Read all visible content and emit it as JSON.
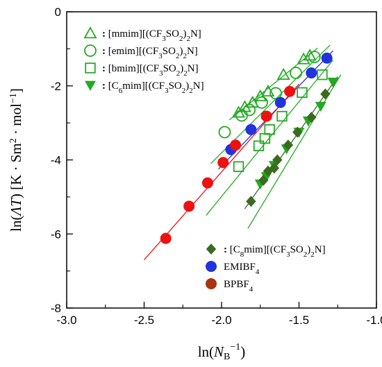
{
  "chart_data": {
    "type": "scatter",
    "title": "",
    "xlabel_parts": [
      "ln(",
      "N",
      "B",
      "−1",
      ")"
    ],
    "ylabel_parts": [
      "ln(",
      "ΛT",
      ")  [K · Sm",
      "2",
      " · mol",
      "−1",
      "]"
    ],
    "xlim": [
      -3.0,
      -1.0
    ],
    "ylim": [
      -8,
      0
    ],
    "x_ticks": [
      -3.0,
      -2.5,
      -2.0,
      -1.5,
      -1.0
    ],
    "x_tick_labels": [
      "-3.0",
      "-2.5",
      "-2.0",
      "-1.5",
      "-1.0"
    ],
    "y_ticks": [
      -8,
      -6,
      -4,
      -2,
      0
    ],
    "y_tick_labels": [
      "-8",
      "-6",
      "-4",
      "-2",
      "0"
    ],
    "grid": false,
    "series": [
      {
        "key": "mmim",
        "legend": [
          "[mmim][(CF",
          "3",
          "SO",
          "2",
          ")",
          "2",
          "N]"
        ],
        "marker": "triangle-open",
        "color": "#22aa22",
        "x": [
          -1.89,
          -1.85,
          -1.8,
          -1.75,
          -1.7,
          -1.6,
          -1.47,
          -1.43
        ],
        "y": [
          -2.72,
          -2.57,
          -2.45,
          -2.28,
          -2.15,
          -1.7,
          -1.28,
          -1.18
        ],
        "fit": [
          [
            -1.95,
            -2.92
          ],
          [
            -1.38,
            -0.98
          ]
        ]
      },
      {
        "key": "emim",
        "legend": [
          "[emim][(CF",
          "3",
          "SO",
          "2",
          ")",
          "2",
          "N]"
        ],
        "marker": "circle-open",
        "color": "#22aa22",
        "x": [
          -1.98,
          -1.87,
          -1.82,
          -1.74,
          -1.65,
          -1.52,
          -1.4
        ],
        "y": [
          -3.25,
          -2.8,
          -2.65,
          -2.45,
          -2.2,
          -1.65,
          -1.22
        ],
        "fit": [
          [
            -2.07,
            -4.1
          ],
          [
            -1.3,
            -0.9
          ]
        ]
      },
      {
        "key": "bmim",
        "legend": [
          "[bmim][(CF",
          "3",
          "SO",
          "2",
          ")",
          "2",
          "N]"
        ],
        "marker": "square-open",
        "color": "#22aa22",
        "x": [
          -1.89,
          -1.76,
          -1.72,
          -1.69,
          -1.61,
          -1.48,
          -1.35
        ],
        "y": [
          -4.18,
          -3.62,
          -3.42,
          -3.18,
          -2.82,
          -2.18,
          -1.7
        ],
        "fit": [
          [
            -2.1,
            -5.5
          ],
          [
            -1.28,
            -1.3
          ]
        ]
      },
      {
        "key": "c6mim",
        "legend": [
          "[C",
          "6",
          "mim][(CF",
          "3",
          "SO",
          "2",
          ")",
          "2",
          "N]"
        ],
        "marker": "triangle-down-filled",
        "color": "#22aa22",
        "x": [
          -1.75,
          -1.71,
          -1.66,
          -1.58,
          -1.5,
          -1.44,
          -1.36,
          -1.28
        ],
        "y": [
          -4.65,
          -4.45,
          -4.15,
          -3.7,
          -3.25,
          -2.95,
          -2.55,
          -1.9
        ],
        "fit": [
          [
            -1.83,
            -5.85
          ],
          [
            -1.23,
            -1.7
          ]
        ]
      },
      {
        "key": "c8mim",
        "legend": [
          "[C",
          "8",
          "mim][(CF",
          "3",
          "SO",
          "2",
          ")",
          "2",
          "N]"
        ],
        "marker": "diamond-filled",
        "color": "#3a6b1f",
        "x": [
          -1.81,
          -1.73,
          -1.7,
          -1.66,
          -1.64,
          -1.57,
          -1.51,
          -1.42,
          -1.33
        ],
        "y": [
          -5.12,
          -4.55,
          -4.3,
          -4.22,
          -4.0,
          -3.6,
          -3.25,
          -2.85,
          -2.22
        ],
        "fit": [
          [
            -1.85,
            -5.32
          ],
          [
            -1.25,
            -1.75
          ]
        ]
      },
      {
        "key": "emibf4",
        "legend": [
          "EMIBF",
          "4"
        ],
        "marker": "circle-filled",
        "color": "#2233dd",
        "x": [
          -1.94,
          -1.81,
          -1.71,
          -1.62,
          -1.42,
          -1.32
        ],
        "y": [
          -3.72,
          -3.18,
          -2.82,
          -2.45,
          -1.65,
          -1.25
        ],
        "fit": [
          [
            -2.02,
            -4.25
          ],
          [
            -1.28,
            -1.05
          ]
        ]
      },
      {
        "key": "bpbf4",
        "legend": [
          "BPBF",
          "4"
        ],
        "marker": "circle-filled",
        "color": "#ee1111",
        "legend_color": "#aa3311",
        "x": [
          -2.36,
          -2.21,
          -2.09,
          -1.99,
          -1.91,
          -1.71,
          -1.56
        ],
        "y": [
          -6.12,
          -5.25,
          -4.62,
          -4.07,
          -3.6,
          -2.82,
          -2.15
        ],
        "fit": [
          [
            -2.5,
            -6.7
          ],
          [
            -1.5,
            -1.95
          ]
        ]
      }
    ]
  }
}
